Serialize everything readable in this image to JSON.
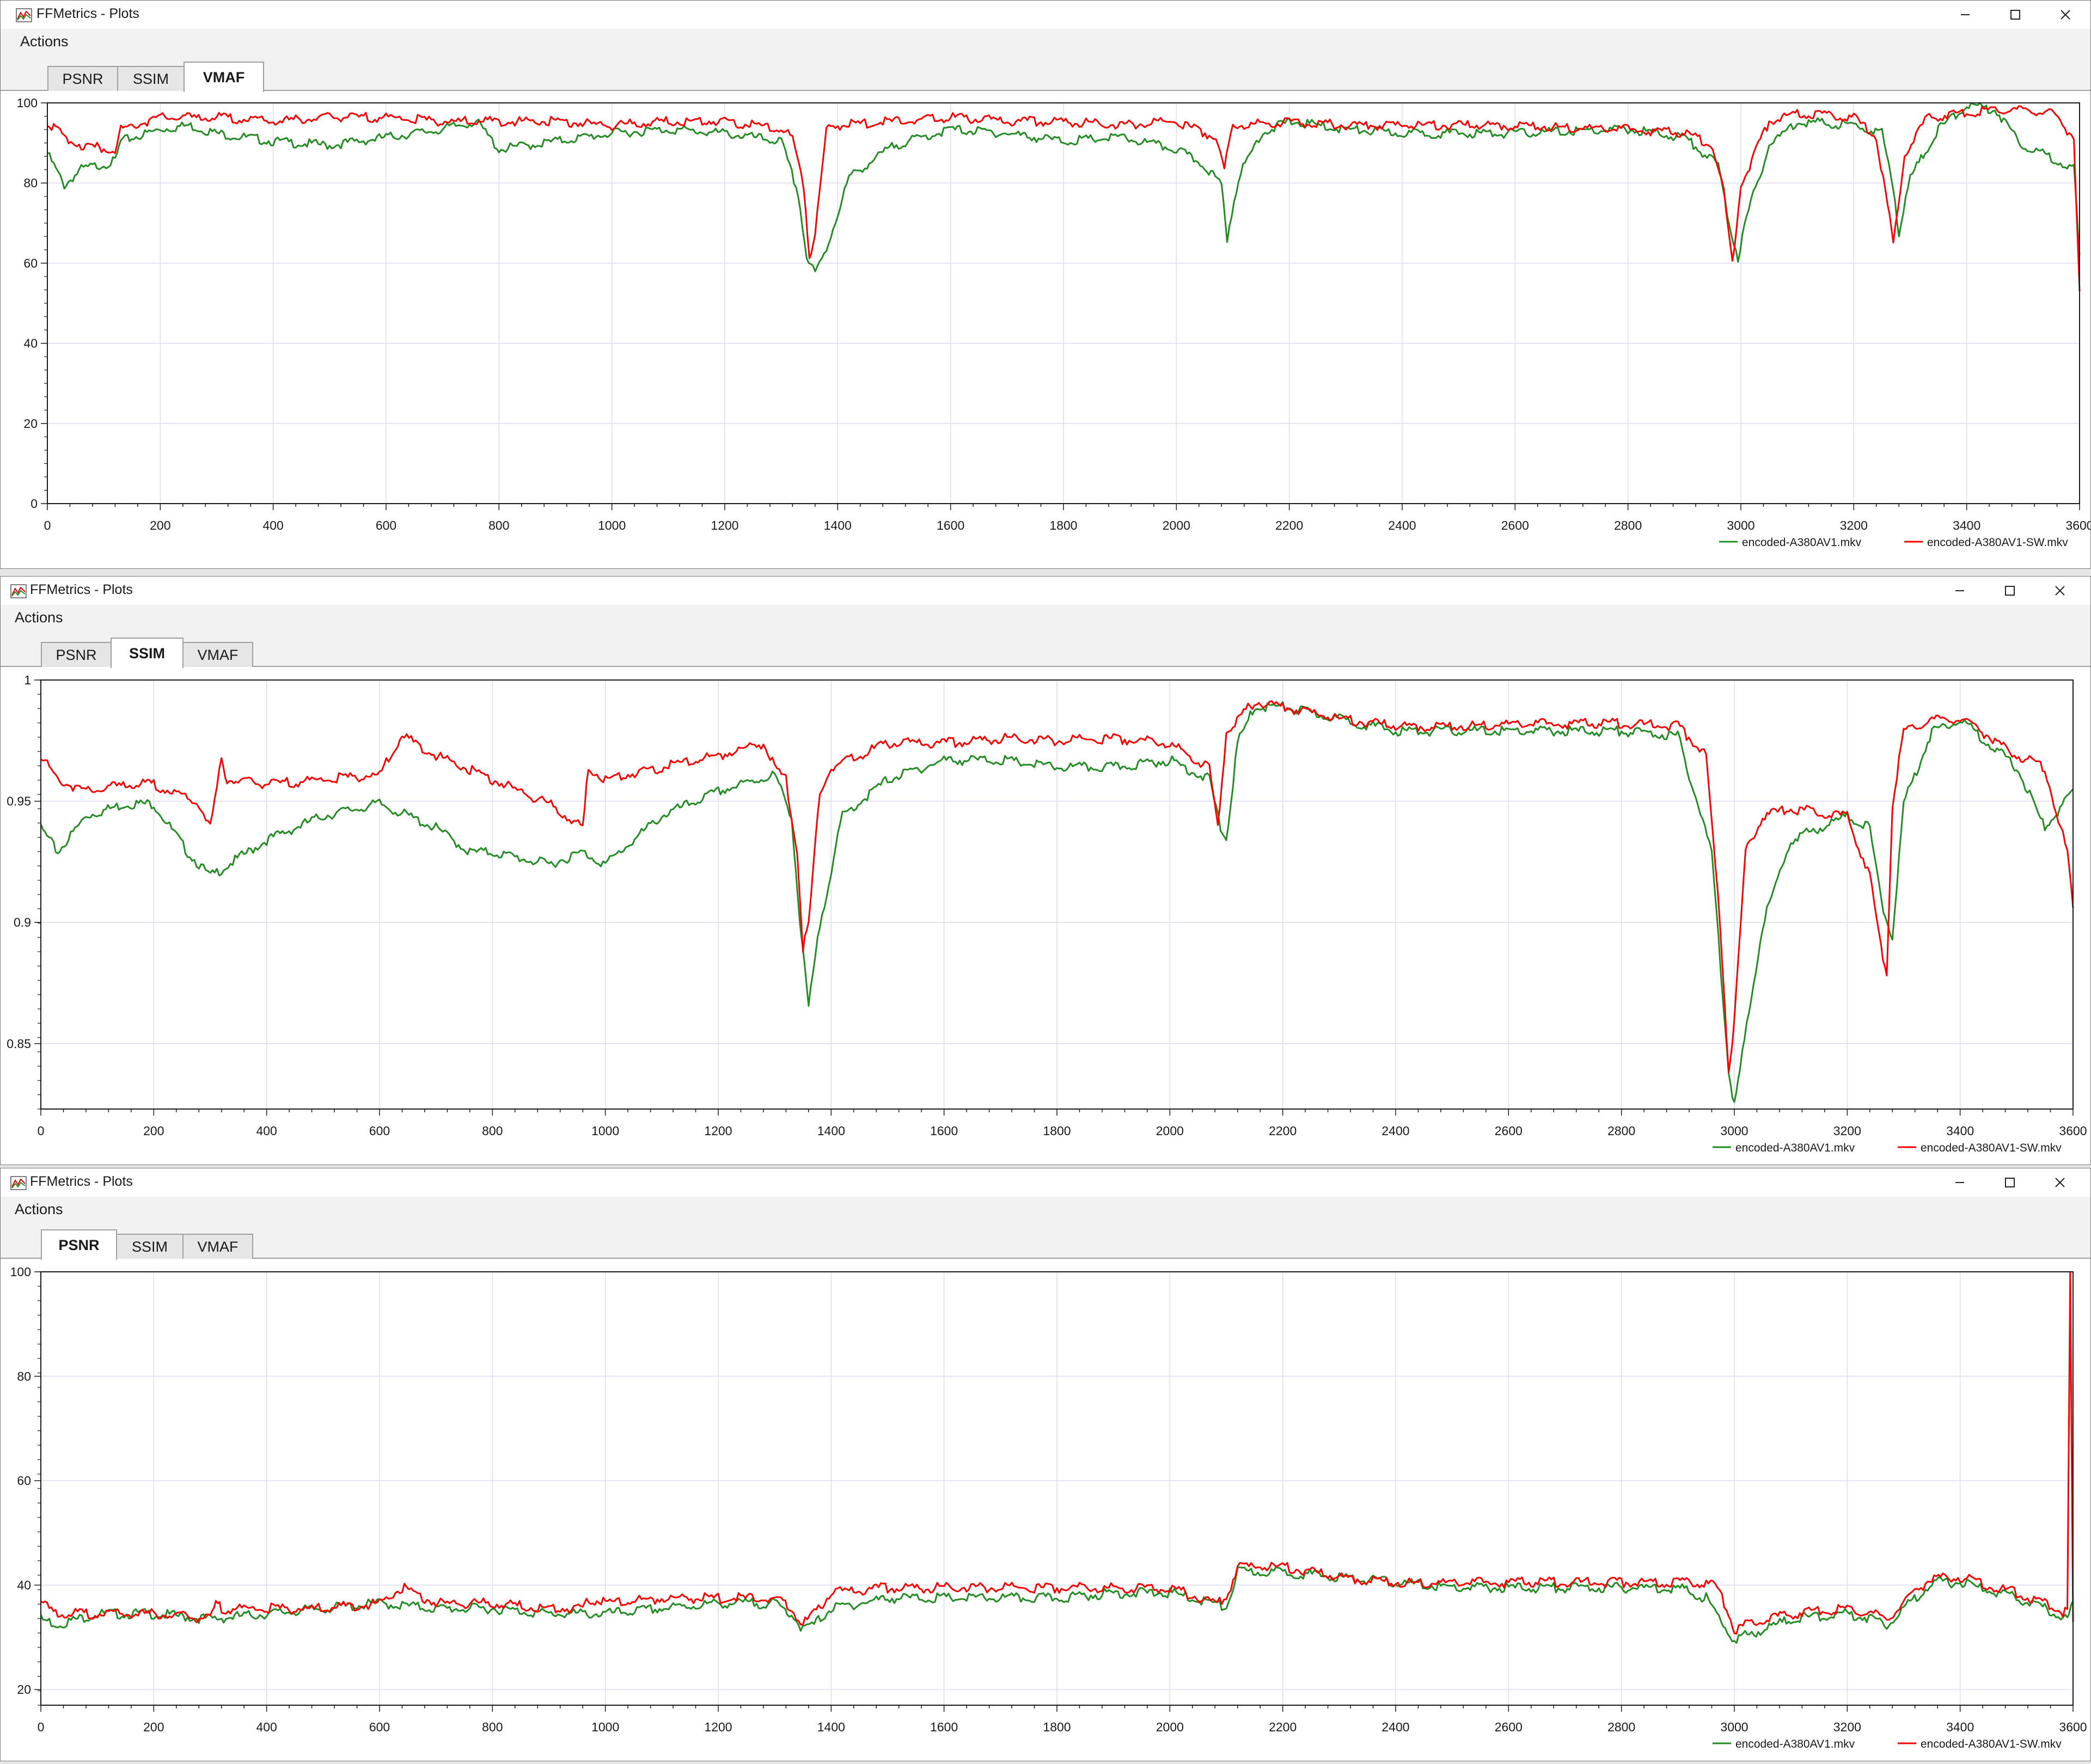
{
  "windows": [
    {
      "title": "FFMetrics - Plots",
      "menu": "Actions",
      "tabs": [
        "PSNR",
        "SSIM",
        "VMAF"
      ],
      "active_tab": "VMAF"
    },
    {
      "title": "FFMetrics - Plots",
      "menu": "Actions",
      "tabs": [
        "PSNR",
        "SSIM",
        "VMAF"
      ],
      "active_tab": "SSIM"
    },
    {
      "title": "FFMetrics - Plots",
      "menu": "Actions",
      "tabs": [
        "PSNR",
        "SSIM",
        "VMAF"
      ],
      "active_tab": "PSNR"
    }
  ],
  "colors": {
    "green": "#228b22",
    "red": "#ff0000",
    "grid": "#dcdcf0",
    "frame": "#1a1a1a"
  },
  "chart_data": [
    {
      "type": "line",
      "metric": "VMAF",
      "x_ticks": [
        "0",
        "200",
        "400",
        "600",
        "800",
        "1000",
        "1200",
        "1400",
        "1600",
        "1800",
        "2000",
        "2200",
        "2400",
        "2600",
        "2800",
        "3000",
        "3200",
        "3400",
        "3600"
      ],
      "y_ticks": [
        "0",
        "20",
        "40",
        "60",
        "80",
        "100"
      ],
      "xlim": [
        0,
        3600
      ],
      "ylim": [
        0,
        100
      ],
      "grid": true,
      "legend_position": "bottom-right",
      "series": [
        {
          "name": "encoded-A380AV1.mkv",
          "color": "#228b22",
          "x": [
            0,
            30,
            60,
            120,
            130,
            200,
            250,
            300,
            400,
            500,
            600,
            700,
            760,
            800,
            900,
            1000,
            1100,
            1200,
            1300,
            1330,
            1345,
            1360,
            1380,
            1420,
            1500,
            1600,
            1700,
            1800,
            1900,
            2000,
            2050,
            2080,
            2090,
            2110,
            2150,
            2200,
            2300,
            2400,
            2600,
            2800,
            2900,
            2960,
            2980,
            2995,
            3010,
            3050,
            3100,
            3200,
            3250,
            3270,
            3280,
            3300,
            3350,
            3400,
            3450,
            3500,
            3550,
            3590,
            3600
          ],
          "y": [
            88,
            80,
            84,
            86,
            91,
            94,
            95,
            93,
            91,
            90,
            92,
            94,
            96,
            89,
            91,
            93,
            94,
            93,
            91,
            78,
            62,
            58,
            64,
            82,
            90,
            94,
            93,
            91,
            92,
            89,
            85,
            80,
            67,
            82,
            93,
            96,
            94,
            93,
            93,
            94,
            92,
            85,
            70,
            62,
            72,
            90,
            96,
            95,
            93,
            80,
            68,
            82,
            94,
            100,
            99,
            90,
            87,
            84,
            62
          ]
        },
        {
          "name": "encoded-A380AV1-SW.mkv",
          "color": "#ff0000",
          "x": [
            0,
            30,
            60,
            120,
            130,
            200,
            300,
            400,
            500,
            600,
            700,
            800,
            900,
            1000,
            1100,
            1200,
            1300,
            1320,
            1340,
            1350,
            1360,
            1380,
            1400,
            1500,
            1600,
            1700,
            1800,
            1900,
            2000,
            2070,
            2085,
            2100,
            2200,
            2300,
            2400,
            2600,
            2800,
            2900,
            2950,
            2970,
            2985,
            3000,
            3050,
            3100,
            3200,
            3240,
            3260,
            3270,
            3290,
            3330,
            3400,
            3450,
            3500,
            3550,
            3590,
            3600
          ],
          "y": [
            96,
            92,
            90,
            89,
            94,
            97,
            97,
            96,
            97,
            97,
            96,
            96,
            96,
            95,
            96,
            96,
            94,
            92,
            80,
            62,
            68,
            94,
            95,
            96,
            97,
            96,
            96,
            95,
            96,
            92,
            84,
            95,
            96,
            95,
            95,
            95,
            94,
            93,
            90,
            78,
            60,
            80,
            96,
            98,
            97,
            92,
            75,
            65,
            88,
            97,
            98,
            99,
            99,
            98,
            92,
            53
          ]
        }
      ]
    },
    {
      "type": "line",
      "metric": "SSIM",
      "x_ticks": [
        "0",
        "200",
        "400",
        "600",
        "800",
        "1000",
        "1200",
        "1400",
        "1600",
        "1800",
        "2000",
        "2200",
        "2400",
        "2600",
        "2800",
        "3000",
        "3200",
        "3400",
        "3600"
      ],
      "y_ticks": [
        "0.85",
        "0.9",
        "0.95",
        "1"
      ],
      "xlim": [
        0,
        3600
      ],
      "ylim": [
        0.823,
        1
      ],
      "grid": true,
      "legend_position": "bottom-right",
      "series": [
        {
          "name": "encoded-A380AV1.mkv",
          "color": "#228b22",
          "x": [
            0,
            30,
            80,
            150,
            200,
            260,
            300,
            400,
            500,
            600,
            700,
            760,
            800,
            900,
            960,
            1000,
            1100,
            1200,
            1300,
            1330,
            1345,
            1360,
            1380,
            1420,
            1500,
            1600,
            1700,
            1800,
            1900,
            2000,
            2070,
            2090,
            2100,
            2120,
            2150,
            2200,
            2300,
            2400,
            2500,
            2600,
            2700,
            2800,
            2900,
            2960,
            2980,
            2990,
            3000,
            3010,
            3050,
            3100,
            3200,
            3240,
            3260,
            3280,
            3300,
            3350,
            3400,
            3450,
            3500,
            3550,
            3600
          ],
          "y": [
            0.94,
            0.93,
            0.945,
            0.95,
            0.95,
            0.93,
            0.92,
            0.935,
            0.945,
            0.95,
            0.94,
            0.93,
            0.93,
            0.925,
            0.93,
            0.925,
            0.945,
            0.955,
            0.962,
            0.945,
            0.9,
            0.866,
            0.9,
            0.945,
            0.96,
            0.968,
            0.968,
            0.965,
            0.965,
            0.968,
            0.96,
            0.94,
            0.935,
            0.975,
            0.99,
            0.99,
            0.985,
            0.98,
            0.98,
            0.98,
            0.98,
            0.98,
            0.978,
            0.93,
            0.87,
            0.84,
            0.826,
            0.84,
            0.9,
            0.935,
            0.945,
            0.94,
            0.91,
            0.895,
            0.95,
            0.98,
            0.985,
            0.975,
            0.965,
            0.94,
            0.955
          ]
        },
        {
          "name": "encoded-A380AV1-SW.mkv",
          "color": "#ff0000",
          "x": [
            0,
            30,
            80,
            150,
            200,
            280,
            300,
            320,
            330,
            400,
            500,
            600,
            640,
            700,
            800,
            900,
            960,
            970,
            1000,
            1100,
            1200,
            1280,
            1300,
            1320,
            1340,
            1350,
            1360,
            1380,
            1400,
            1500,
            1600,
            1700,
            1800,
            1900,
            2000,
            2070,
            2085,
            2100,
            2150,
            2200,
            2300,
            2400,
            2500,
            2600,
            2700,
            2800,
            2900,
            2950,
            2975,
            2990,
            3000,
            3020,
            3050,
            3100,
            3200,
            3240,
            3260,
            3270,
            3280,
            3300,
            3350,
            3400,
            3450,
            3500,
            3550,
            3590,
            3600
          ],
          "y": [
            0.97,
            0.96,
            0.955,
            0.958,
            0.958,
            0.95,
            0.94,
            0.968,
            0.96,
            0.958,
            0.96,
            0.962,
            0.978,
            0.97,
            0.96,
            0.95,
            0.94,
            0.965,
            0.96,
            0.965,
            0.97,
            0.975,
            0.965,
            0.96,
            0.93,
            0.89,
            0.9,
            0.955,
            0.965,
            0.975,
            0.975,
            0.977,
            0.976,
            0.977,
            0.975,
            0.965,
            0.94,
            0.98,
            0.992,
            0.99,
            0.985,
            0.982,
            0.982,
            0.983,
            0.983,
            0.983,
            0.982,
            0.97,
            0.9,
            0.84,
            0.86,
            0.93,
            0.945,
            0.948,
            0.945,
            0.92,
            0.89,
            0.88,
            0.95,
            0.98,
            0.985,
            0.985,
            0.978,
            0.97,
            0.965,
            0.93,
            0.906
          ]
        }
      ]
    },
    {
      "type": "line",
      "metric": "PSNR",
      "x_ticks": [
        "0",
        "200",
        "400",
        "600",
        "800",
        "1000",
        "1200",
        "1400",
        "1600",
        "1800",
        "2000",
        "2200",
        "2400",
        "2600",
        "2800",
        "3000",
        "3200",
        "3400",
        "3600"
      ],
      "y_ticks": [
        "20",
        "40",
        "60",
        "80",
        "100"
      ],
      "xlim": [
        0,
        3600
      ],
      "ylim": [
        17,
        100
      ],
      "grid": true,
      "legend_position": "bottom-right",
      "series": [
        {
          "name": "encoded-A380AV1.mkv",
          "color": "#228b22",
          "x": [
            0,
            30,
            100,
            200,
            300,
            400,
            500,
            600,
            700,
            800,
            900,
            1000,
            1100,
            1200,
            1300,
            1330,
            1350,
            1370,
            1400,
            1500,
            1600,
            1700,
            1800,
            1900,
            2000,
            2080,
            2100,
            2120,
            2200,
            2300,
            2400,
            2500,
            2600,
            2700,
            2800,
            2900,
            2950,
            2980,
            3000,
            3050,
            3100,
            3200,
            3250,
            3270,
            3300,
            3350,
            3400,
            3500,
            3550,
            3590,
            3600
          ],
          "y": [
            34,
            33,
            35,
            35,
            34,
            35,
            36,
            37,
            36,
            36,
            35,
            35,
            36,
            37,
            37,
            35,
            32,
            33,
            36,
            38,
            38,
            38,
            38,
            39,
            39,
            37,
            36,
            43,
            43,
            42,
            41,
            40,
            40,
            40,
            40,
            40,
            38,
            33,
            30,
            32,
            34,
            35,
            34,
            33,
            36,
            41,
            41,
            38,
            36,
            34,
            37
          ]
        },
        {
          "name": "encoded-A380AV1-SW.mkv",
          "color": "#ff0000",
          "x": [
            0,
            30,
            100,
            200,
            300,
            310,
            320,
            400,
            500,
            600,
            640,
            700,
            800,
            900,
            960,
            970,
            1000,
            1100,
            1200,
            1300,
            1330,
            1350,
            1370,
            1400,
            1500,
            1600,
            1700,
            1800,
            1900,
            2000,
            2080,
            2100,
            2120,
            2200,
            2300,
            2400,
            2500,
            2600,
            2700,
            2800,
            2900,
            2950,
            2970,
            2990,
            3000,
            3050,
            3100,
            3200,
            3250,
            3270,
            3300,
            3350,
            3400,
            3500,
            3550,
            3590,
            3595,
            3600
          ],
          "y": [
            37,
            35,
            35,
            35,
            34,
            37,
            36,
            36,
            36,
            37,
            40,
            37,
            37,
            36,
            36,
            38,
            37,
            38,
            38,
            38,
            36,
            33,
            35,
            39,
            40,
            40,
            40,
            40,
            40,
            40,
            37,
            38,
            44,
            44,
            42,
            41,
            41,
            41,
            41,
            41,
            41,
            41,
            40,
            35,
            32,
            34,
            35,
            36,
            35,
            34,
            37,
            42,
            42,
            39,
            37,
            35,
            100,
            33
          ]
        }
      ]
    }
  ]
}
